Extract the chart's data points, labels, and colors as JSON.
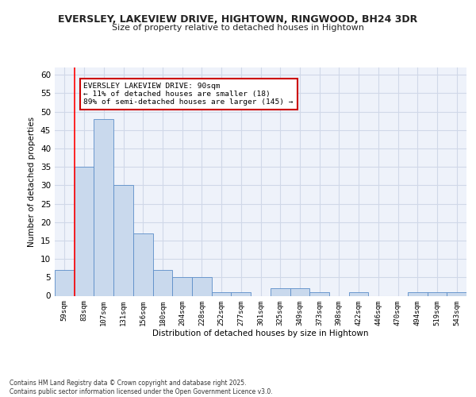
{
  "title": "EVERSLEY, LAKEVIEW DRIVE, HIGHTOWN, RINGWOOD, BH24 3DR",
  "subtitle": "Size of property relative to detached houses in Hightown",
  "xlabel": "Distribution of detached houses by size in Hightown",
  "ylabel": "Number of detached properties",
  "bins": [
    "59sqm",
    "83sqm",
    "107sqm",
    "131sqm",
    "156sqm",
    "180sqm",
    "204sqm",
    "228sqm",
    "252sqm",
    "277sqm",
    "301sqm",
    "325sqm",
    "349sqm",
    "373sqm",
    "398sqm",
    "422sqm",
    "446sqm",
    "470sqm",
    "494sqm",
    "519sqm",
    "543sqm"
  ],
  "values": [
    7,
    35,
    48,
    30,
    17,
    7,
    5,
    5,
    1,
    1,
    0,
    2,
    2,
    1,
    0,
    1,
    0,
    0,
    1,
    1,
    1
  ],
  "bar_color": "#c9d9ed",
  "bar_edge_color": "#5b8dc8",
  "grid_color": "#d0d8e8",
  "background_color": "#eef2fa",
  "red_line_x": 1,
  "annotation_text": "EVERSLEY LAKEVIEW DRIVE: 90sqm\n← 11% of detached houses are smaller (18)\n89% of semi-detached houses are larger (145) →",
  "annotation_box_color": "#ffffff",
  "annotation_box_edge": "#cc0000",
  "ylim": [
    0,
    62
  ],
  "yticks": [
    0,
    5,
    10,
    15,
    20,
    25,
    30,
    35,
    40,
    45,
    50,
    55,
    60
  ],
  "footer": "Contains HM Land Registry data © Crown copyright and database right 2025.\nContains public sector information licensed under the Open Government Licence v3.0."
}
